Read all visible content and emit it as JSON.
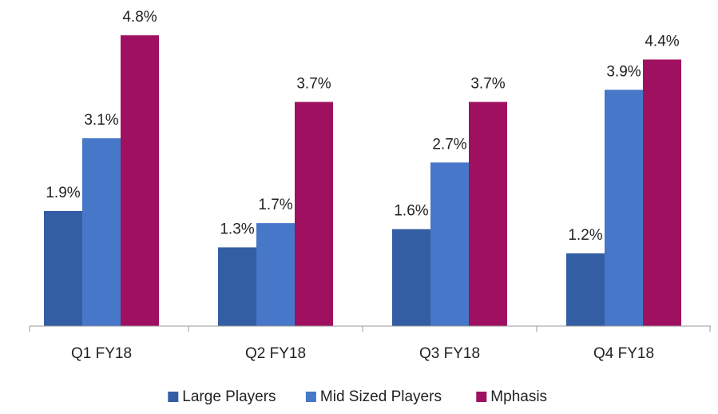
{
  "chart_data": {
    "type": "bar",
    "categories": [
      "Q1 FY18",
      "Q2 FY18",
      "Q3 FY18",
      "Q4 FY18"
    ],
    "series": [
      {
        "name": "Large Players",
        "color": "#345ea3",
        "values": [
          1.9,
          1.3,
          1.6,
          1.2
        ],
        "value_labels": [
          "1.9%",
          "1.3%",
          "1.6%",
          "1.2%"
        ]
      },
      {
        "name": "Mid Sized Players",
        "color": "#4677c8",
        "values": [
          3.1,
          1.7,
          2.7,
          3.9
        ],
        "value_labels": [
          "3.1%",
          "1.7%",
          "2.7%",
          "3.9%"
        ]
      },
      {
        "name": "Mphasis",
        "color": "#a01060",
        "values": [
          4.8,
          3.7,
          3.7,
          4.4
        ],
        "value_labels": [
          "4.8%",
          "3.7%",
          "3.7%",
          "4.4%"
        ]
      }
    ],
    "ylim": [
      0,
      5
    ],
    "legend": "bottom"
  }
}
